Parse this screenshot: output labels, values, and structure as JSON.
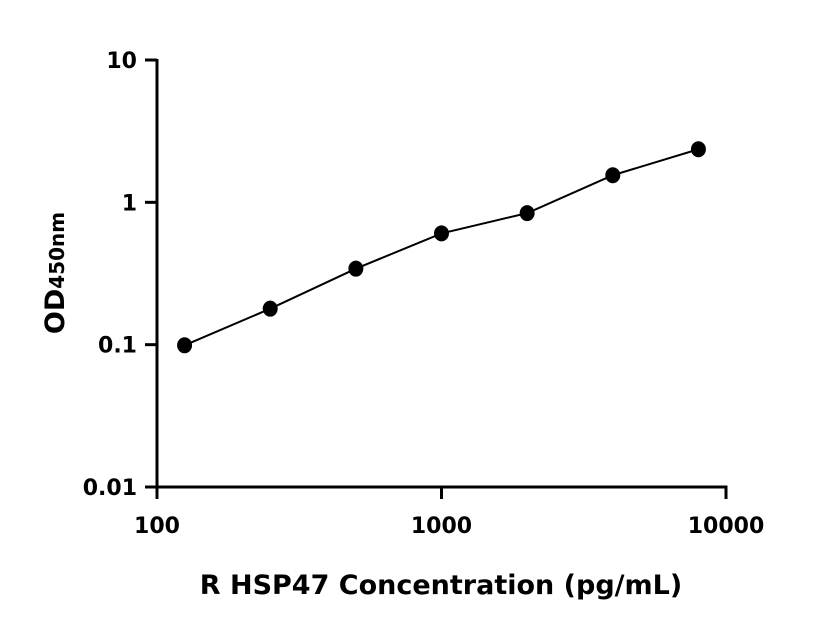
{
  "chart_data": {
    "type": "scatter",
    "xlabel": "R HSP47 Concentration (pg/mL)",
    "ylabel": "OD",
    "ylabel_subscript": "450nm",
    "xscale": "log",
    "yscale": "log",
    "xlim": [
      100,
      10000
    ],
    "ylim": [
      0.01,
      10
    ],
    "xticks": [
      "100",
      "1000",
      "10000"
    ],
    "yticks": [
      "0.01",
      "0.1",
      "1",
      "10"
    ],
    "grid": false,
    "fit_line": true,
    "x": [
      125,
      250,
      500,
      1000,
      2000,
      4000,
      8000
    ],
    "y": [
      0.099,
      0.179,
      0.342,
      0.605,
      0.84,
      1.55,
      2.36
    ],
    "colors": {
      "points": "#000000",
      "line": "#000000"
    }
  }
}
